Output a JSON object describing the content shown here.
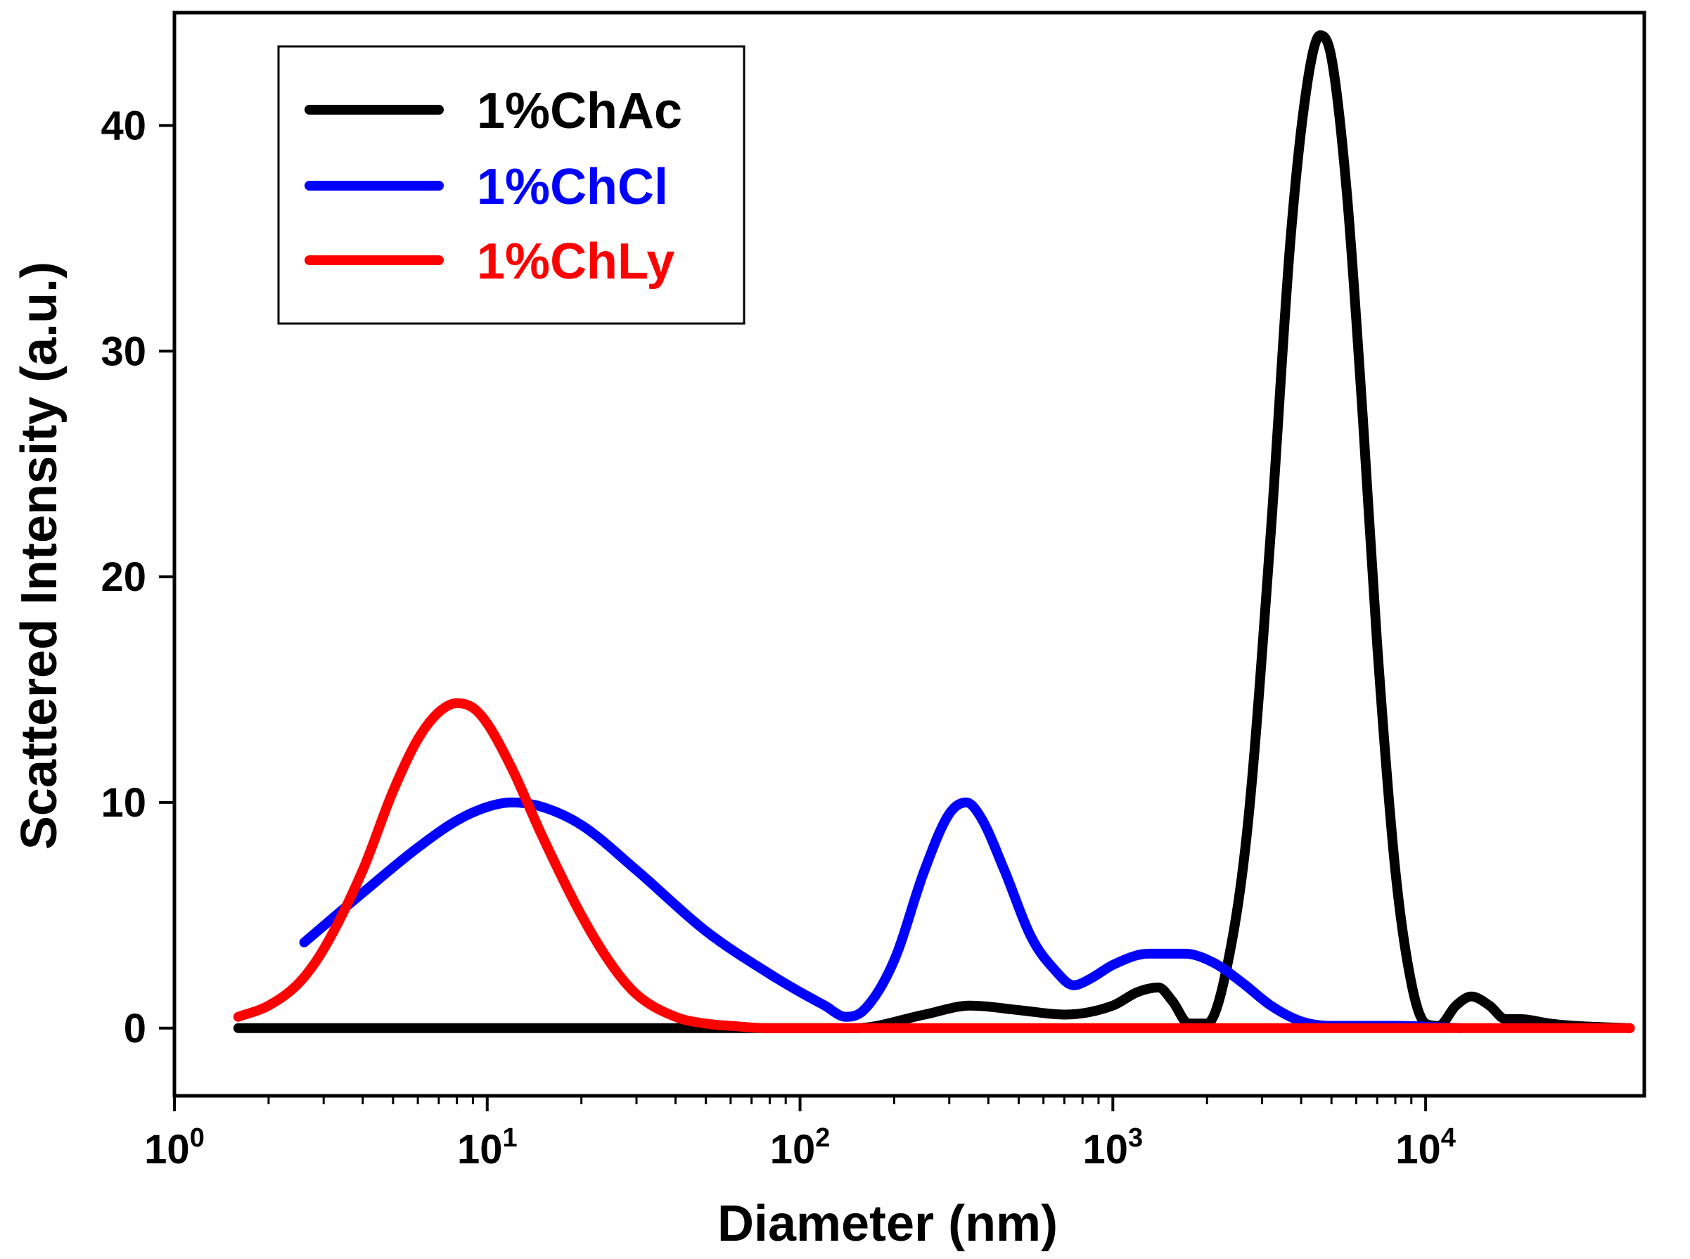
{
  "chart_data": {
    "type": "line",
    "title": "",
    "xlabel": "Diameter (nm)",
    "ylabel": "Scattered Intensity (a.u.)",
    "xscale": "log",
    "xlim": [
      1,
      50000
    ],
    "ylim": [
      -3,
      45
    ],
    "x_ticks": [
      {
        "base": "10",
        "exp": "0"
      },
      {
        "base": "10",
        "exp": "1"
      },
      {
        "base": "10",
        "exp": "2"
      },
      {
        "base": "10",
        "exp": "3"
      },
      {
        "base": "10",
        "exp": "4"
      }
    ],
    "y_ticks": [
      "0",
      "10",
      "20",
      "30",
      "40"
    ],
    "grid": false,
    "legend_position": "top-left",
    "series": [
      {
        "name": "1%ChAc",
        "color": "#000000",
        "x": [
          1.6,
          10,
          50,
          150,
          250,
          350,
          500,
          700,
          1000,
          1200,
          1400,
          1550,
          1750,
          2000,
          2300,
          2700,
          3200,
          3700,
          4200,
          4600,
          5000,
          5600,
          6300,
          7000,
          8000,
          9000,
          10000,
          11000,
          12500,
          14000,
          16000,
          18000,
          20000,
          25000,
          30000,
          45000
        ],
        "y": [
          0,
          0,
          0,
          0,
          0.6,
          1.0,
          0.8,
          0.6,
          1.0,
          1.6,
          1.8,
          1.2,
          0.2,
          0.2,
          2.5,
          9,
          22,
          35,
          42,
          44,
          43,
          37,
          27,
          17,
          7,
          2,
          0.2,
          0.1,
          1.0,
          1.4,
          1.0,
          0.4,
          0.4,
          0.2,
          0.1,
          0
        ]
      },
      {
        "name": "1%ChCl",
        "color": "#0000ff",
        "x": [
          2.6,
          4,
          6,
          8,
          10,
          12,
          15,
          20,
          30,
          50,
          80,
          100,
          120,
          140,
          160,
          200,
          250,
          300,
          340,
          380,
          450,
          550,
          650,
          750,
          850,
          1000,
          1300,
          1700,
          2100,
          2600,
          3200,
          4000,
          5000,
          6500,
          8000,
          13000
        ],
        "y": [
          3.8,
          6.0,
          8.0,
          9.2,
          9.8,
          10.0,
          9.8,
          9.0,
          7.0,
          4.3,
          2.4,
          1.6,
          1.0,
          0.5,
          0.8,
          3.0,
          7.0,
          9.5,
          10.0,
          9.3,
          7.0,
          4.0,
          2.6,
          1.9,
          2.2,
          2.8,
          3.3,
          3.3,
          2.9,
          2.0,
          1.0,
          0.3,
          0.1,
          0.1,
          0.1,
          0
        ]
      },
      {
        "name": "1%ChLy",
        "color": "#ff0000",
        "x": [
          1.6,
          2.0,
          2.5,
          3.0,
          4.0,
          5.0,
          6.0,
          7.0,
          8.0,
          9.0,
          10,
          12,
          15,
          20,
          25,
          30,
          40,
          50,
          60,
          80,
          100,
          1000,
          10000,
          45000
        ],
        "y": [
          0.5,
          1.0,
          2.0,
          3.5,
          7.0,
          10.5,
          12.8,
          14.0,
          14.4,
          14.2,
          13.5,
          11.5,
          8.5,
          5.0,
          2.8,
          1.5,
          0.5,
          0.2,
          0.1,
          0,
          0,
          0,
          0,
          0
        ]
      }
    ]
  }
}
